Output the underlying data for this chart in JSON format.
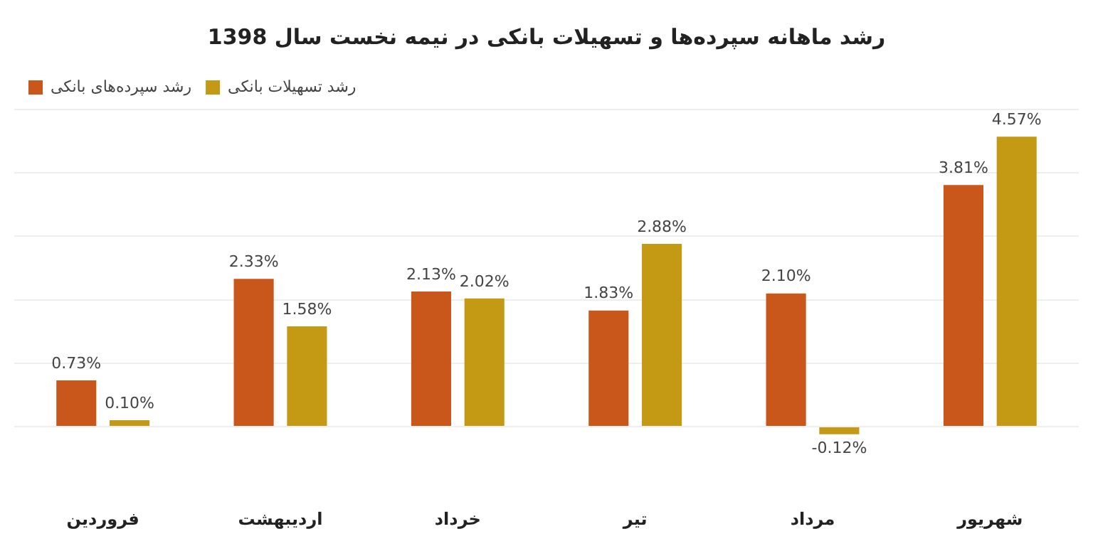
{
  "chart_data": {
    "type": "bar",
    "title": "رشد ماهانه سپرده‌ها و تسهیلات بانکی در نیمه نخست سال 1398",
    "categories": [
      "فروردین",
      "اردیبهشت",
      "خرداد",
      "تیر",
      "مرداد",
      "شهریور"
    ],
    "series": [
      {
        "name": "رشد سپرده‌های بانکی",
        "color": "#c9561b",
        "values": [
          0.73,
          2.33,
          2.13,
          1.83,
          2.1,
          3.81
        ],
        "value_labels": [
          "0.73%",
          "2.33%",
          "2.13%",
          "1.83%",
          "2.10%",
          "3.81%"
        ]
      },
      {
        "name": "رشد تسهیلات بانکی",
        "color": "#c49a14",
        "values": [
          0.1,
          1.58,
          2.02,
          2.88,
          -0.12,
          4.57
        ],
        "value_labels": [
          "0.10%",
          "1.58%",
          "2.02%",
          "2.88%",
          "-0.12%",
          "4.57%"
        ]
      }
    ],
    "yticks": [
      {
        "value": 0,
        "label": null
      },
      {
        "value": 1,
        "label": null
      },
      {
        "value": 2,
        "label": null
      },
      {
        "value": 3,
        "label": null
      },
      {
        "value": 4,
        "label": null
      },
      {
        "value": 5,
        "label": null
      }
    ],
    "tick_labels": "x",
    "grid": "y",
    "legend": "top left"
  }
}
